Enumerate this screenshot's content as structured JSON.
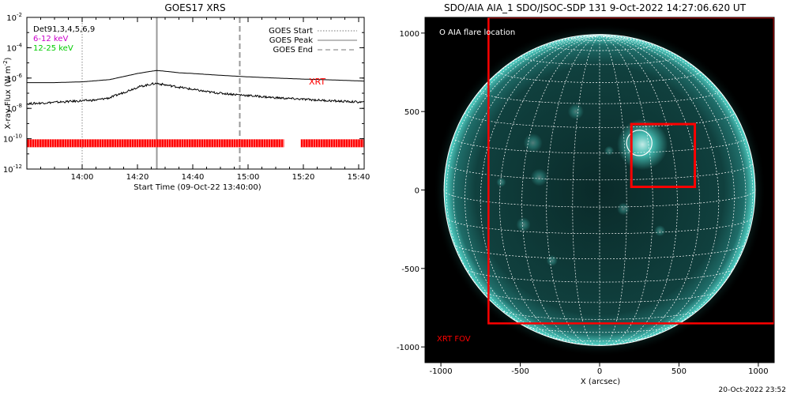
{
  "footer_timestamp": "20-Oct-2022 23:52",
  "colors": {
    "xrt": "#ff0000",
    "band_low": "#cc00cc",
    "band_high": "#00cc00",
    "sun_base": "#0d3a38",
    "sun_glow": "#5ffff0",
    "grid": "#ffffff"
  },
  "chart_data": [
    {
      "type": "line",
      "title": "GOES17 XRS",
      "xlabel": "Start Time (09-Oct-22 13:40:00)",
      "ylabel": "X-ray Flux (W m^-2)",
      "ylabel_parts": [
        "X-ray Flux (W m",
        "-2",
        ")"
      ],
      "x_range_minutes": [
        0,
        122
      ],
      "x_ticks": [
        {
          "minute": 20,
          "label": "14:00"
        },
        {
          "minute": 40,
          "label": "14:20"
        },
        {
          "minute": 60,
          "label": "14:40"
        },
        {
          "minute": 80,
          "label": "15:00"
        },
        {
          "minute": 100,
          "label": "15:20"
        },
        {
          "minute": 120,
          "label": "15:40"
        }
      ],
      "y_scale": "log",
      "y_range_log10": [
        -12,
        -2
      ],
      "y_ticks": [
        {
          "exp": -2,
          "label": "10",
          "sup": "-2"
        },
        {
          "exp": -4,
          "label": "10",
          "sup": "-4"
        },
        {
          "exp": -6,
          "label": "10",
          "sup": "-6"
        },
        {
          "exp": -8,
          "label": "10",
          "sup": "-8"
        },
        {
          "exp": -10,
          "label": "10",
          "sup": "-10"
        },
        {
          "exp": -12,
          "label": "10",
          "sup": "-12"
        }
      ],
      "top_left_labels": {
        "detectors": "Det91,3,4,5,6,9",
        "band_low": "6-12 keV",
        "band_high": "12-25 keV"
      },
      "legend": [
        {
          "label": "GOES Start",
          "style": "dotted"
        },
        {
          "label": "GOES Peak",
          "style": "solid"
        },
        {
          "label": "GOES End",
          "style": "dashed"
        }
      ],
      "event_lines": {
        "start": 20,
        "peak": 47,
        "end": 77
      },
      "xrt_label": "XRT",
      "series": [
        {
          "name": "",
          "style": "smooth",
          "x": [
            0,
            10,
            20,
            30,
            35,
            40,
            45,
            47,
            50,
            55,
            60,
            70,
            80,
            90,
            100,
            110,
            122
          ],
          "log10_y": [
            -6.3,
            -6.3,
            -6.25,
            -6.1,
            -5.9,
            -5.7,
            -5.55,
            -5.5,
            -5.55,
            -5.65,
            -5.7,
            -5.82,
            -5.92,
            -6.0,
            -6.07,
            -6.12,
            -6.2
          ]
        },
        {
          "name": "",
          "style": "noisy",
          "x": [
            0,
            5,
            10,
            15,
            20,
            25,
            30,
            35,
            40,
            45,
            47,
            50,
            55,
            60,
            65,
            70,
            80,
            90,
            100,
            110,
            122
          ],
          "log10_y": [
            -7.7,
            -7.65,
            -7.6,
            -7.55,
            -7.5,
            -7.45,
            -7.3,
            -6.95,
            -6.6,
            -6.4,
            -6.35,
            -6.45,
            -6.6,
            -6.75,
            -6.9,
            -7.0,
            -7.15,
            -7.3,
            -7.4,
            -7.5,
            -7.6
          ]
        }
      ],
      "xrt_coverage": {
        "log10_y": -10.3,
        "intervals": [
          [
            0,
            93
          ],
          [
            99,
            122
          ]
        ]
      }
    },
    {
      "type": "scatter",
      "title": "SDO/AIA AIA_1 SDO/JSOC-SDP 131  9-Oct-2022 14:27:06.620 UT",
      "xlabel": "X (arcsec)",
      "ylabel": "",
      "xlim": [
        -1100,
        1100
      ],
      "ylim": [
        -1100,
        1100
      ],
      "x_ticks": [
        {
          "value": -1000,
          "label": "-1000"
        },
        {
          "value": -500,
          "label": "-500"
        },
        {
          "value": 0,
          "label": "0"
        },
        {
          "value": 500,
          "label": "500"
        },
        {
          "value": 1000,
          "label": "1000"
        }
      ],
      "y_ticks": [
        {
          "value": 1000,
          "label": "1000"
        },
        {
          "value": 500,
          "label": "500"
        },
        {
          "value": 0,
          "label": "0"
        },
        {
          "value": -500,
          "label": "-500"
        },
        {
          "value": -1000,
          "label": "-1000"
        }
      ],
      "solar_radius_arcsec": 980,
      "grid_spacing_deg": 10,
      "flare_label": "O AIA flare location",
      "flare_location": {
        "x": 250,
        "y": 300,
        "r": 80
      },
      "region_box": {
        "x0": 200,
        "y0": 20,
        "x1": 600,
        "y1": 420
      },
      "fov_label": "XRT FOV",
      "xrt_fov": {
        "x0": -700,
        "y0": -850,
        "x1": 1100,
        "y1": 1100
      }
    }
  ]
}
